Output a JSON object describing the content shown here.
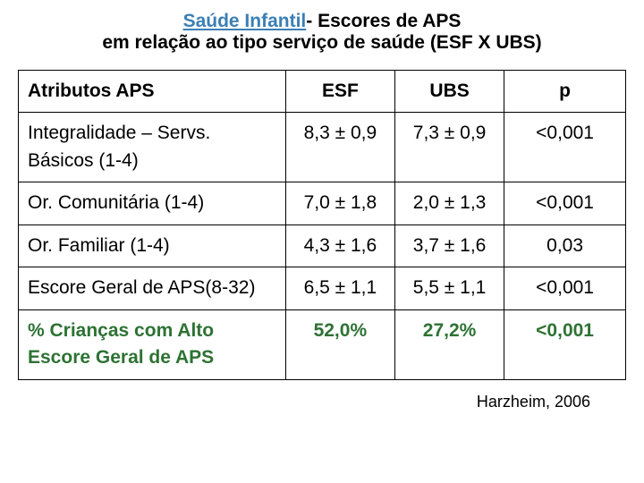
{
  "title": {
    "accent": "Saúde Infantil",
    "rest1": "- Escores de APS",
    "line2": "em relação ao tipo serviço de saúde (ESF X UBS)"
  },
  "table": {
    "columns": [
      "Atributos APS",
      "ESF",
      "UBS",
      "p"
    ],
    "rows": [
      {
        "attr": "Integralidade – Servs. Básicos (1-4)",
        "esf": "8,3 ± 0,9",
        "ubs": "7,3 ± 0,9",
        "p": "<0,001",
        "highlight": false
      },
      {
        "attr": "Or. Comunitária (1-4)",
        "esf": "7,0 ± 1,8",
        "ubs": "2,0 ± 1,3",
        "p": "<0,001",
        "highlight": false
      },
      {
        "attr": "Or. Familiar (1-4)",
        "esf": "4,3 ± 1,6",
        "ubs": "3,7 ± 1,6",
        "p": "0,03",
        "highlight": false
      },
      {
        "attr": "Escore Geral de APS(8-32)",
        "esf": "6,5 ± 1,1",
        "ubs": "5,5 ± 1,1",
        "p": "<0,001",
        "highlight": false
      },
      {
        "attr": "% Crianças com Alto Escore Geral de APS",
        "esf": "52,0%",
        "ubs": "27,2%",
        "p": "<0,001",
        "highlight": true
      }
    ]
  },
  "source": "Harzheim, 2006"
}
